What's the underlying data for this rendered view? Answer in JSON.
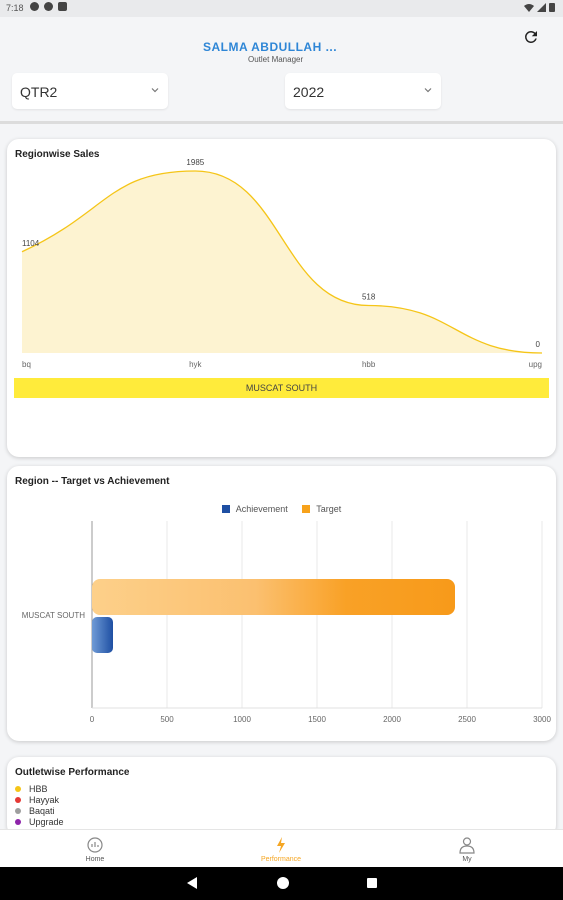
{
  "status_bar": {
    "time": "7:18"
  },
  "header": {
    "username": "SALMA ABDULLAH ...",
    "role": "Outlet Manager",
    "quarter_select": {
      "value": "QTR2"
    },
    "year_select": {
      "value": "2022"
    }
  },
  "regionwise_sales": {
    "title": "Regionwise Sales",
    "region_label": "MUSCAT SOUTH",
    "color": "#f5c518",
    "chart_data": {
      "type": "area",
      "categories": [
        "bq",
        "hyk",
        "hbb",
        "upg"
      ],
      "values": [
        1104,
        1985,
        518,
        0
      ],
      "data_labels": [
        "1104",
        "1985",
        "518",
        "0"
      ],
      "title": "Regionwise Sales",
      "grid": false
    }
  },
  "target_vs_achievement": {
    "title": "Region -- Target vs Achievement",
    "legend": [
      "Achievement",
      "Target"
    ],
    "colors": {
      "achievement": "#1e4fa3",
      "target": "#f7a21b"
    },
    "chart_data": {
      "type": "bar",
      "orientation": "horizontal",
      "categories": [
        "MUSCAT SOUTH"
      ],
      "series": [
        {
          "name": "Target",
          "values": [
            2420
          ]
        },
        {
          "name": "Achievement",
          "values": [
            140
          ]
        }
      ],
      "xlim": [
        0,
        3000
      ],
      "xticks": [
        "0",
        "500",
        "1000",
        "1500",
        "2000",
        "2500",
        "3000"
      ],
      "grid": true,
      "legend_position": "top"
    }
  },
  "outletwise_performance": {
    "title": "Outletwise Performance",
    "legend": [
      {
        "label": "HBB",
        "color": "#f5c518"
      },
      {
        "label": "Hayyak",
        "color": "#e53935"
      },
      {
        "label": "Baqati",
        "color": "#9e9e9e"
      },
      {
        "label": "Upgrade",
        "color": "#8e24aa"
      }
    ]
  },
  "bottom_nav": {
    "items": [
      {
        "label": "Home",
        "icon": "home-chart-icon"
      },
      {
        "label": "Performance",
        "icon": "performance-icon"
      },
      {
        "label": "My",
        "icon": "person-icon"
      }
    ],
    "active_color": "#f5a623"
  }
}
